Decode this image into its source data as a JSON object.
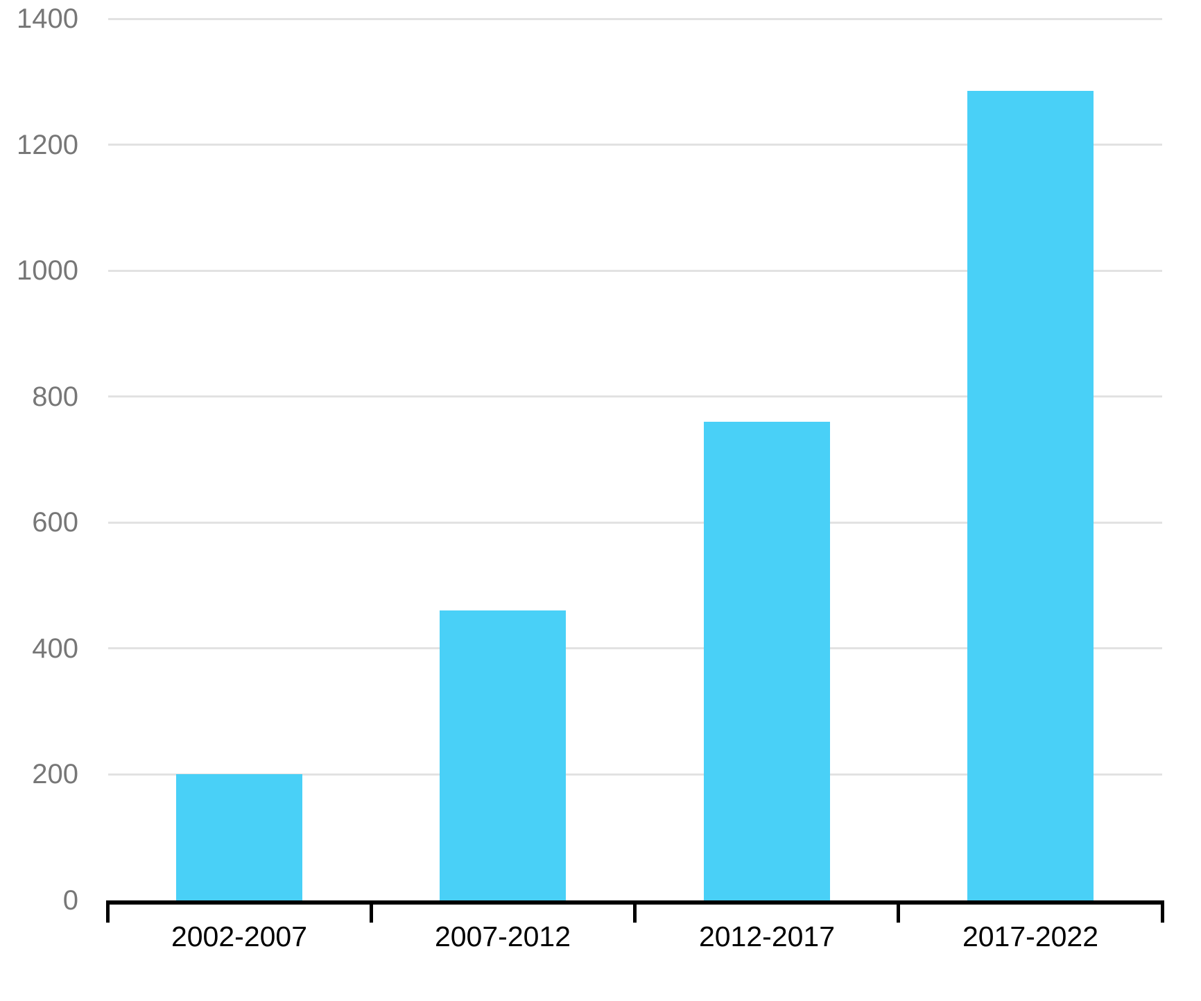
{
  "chart_data": {
    "type": "bar",
    "title": "",
    "xlabel": "",
    "ylabel": "",
    "categories": [
      "2002-2007",
      "2007-2012",
      "2012-2017",
      "2017-2022"
    ],
    "values": [
      200,
      460,
      760,
      1285
    ],
    "ylim": [
      0,
      1400
    ],
    "ytick_step": 200,
    "ytick_labels": [
      "0",
      "200",
      "400",
      "600",
      "800",
      "1000",
      "1200",
      "1400"
    ],
    "grid": "horizontal-only",
    "legend_position": "none",
    "colors": {
      "bar_fill": "#49D0F7",
      "gridline": "#E2E2E2",
      "axis_line": "#000000",
      "tick_mark": "#000000",
      "y_tick_label": "#777777",
      "x_tick_label": "#000000",
      "background": "#FFFFFF"
    }
  }
}
